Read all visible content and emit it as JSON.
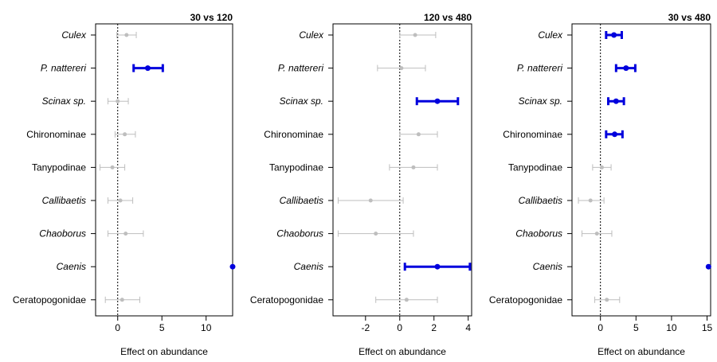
{
  "chart_data": [
    {
      "type": "forest",
      "title": "30 vs 120",
      "xlabel": "Effect on abundance",
      "xlim": [
        -2.5,
        13
      ],
      "xticks": [
        0,
        5,
        10
      ],
      "categories": [
        "Culex",
        "P. nattereri",
        "Scinax sp.",
        "Chironominae",
        "Tanypodinae",
        "Callibaetis",
        "Chaoborus",
        "Caenis",
        "Ceratopogonidae"
      ],
      "points": [
        {
          "est": 1.0,
          "lo": -0.1,
          "hi": 2.1,
          "sig": false
        },
        {
          "est": 3.4,
          "lo": 1.8,
          "hi": 5.1,
          "sig": true
        },
        {
          "est": 0.0,
          "lo": -1.1,
          "hi": 1.2,
          "sig": false
        },
        {
          "est": 0.8,
          "lo": -0.3,
          "hi": 2.0,
          "sig": false
        },
        {
          "est": -0.6,
          "lo": -2.0,
          "hi": 0.8,
          "sig": false
        },
        {
          "est": 0.3,
          "lo": -1.1,
          "hi": 1.7,
          "sig": false
        },
        {
          "est": 0.9,
          "lo": -1.1,
          "hi": 2.9,
          "sig": false
        },
        {
          "est": 13.0,
          "lo": 13.0,
          "hi": 13.0,
          "sig": true
        },
        {
          "est": 0.5,
          "lo": -1.4,
          "hi": 2.5,
          "sig": false
        }
      ]
    },
    {
      "type": "forest",
      "title": "120 vs 480",
      "xlabel": "Effect on abundance",
      "xlim": [
        -3.9,
        4.2
      ],
      "xticks": [
        -2,
        0,
        2,
        4
      ],
      "categories": [
        "Culex",
        "P. nattereri",
        "Scinax sp.",
        "Chironominae",
        "Tanypodinae",
        "Callibaetis",
        "Chaoborus",
        "Caenis",
        "Ceratopogonidae"
      ],
      "points": [
        {
          "est": 0.9,
          "lo": 0.0,
          "hi": 2.1,
          "sig": false
        },
        {
          "est": 0.1,
          "lo": -1.3,
          "hi": 1.5,
          "sig": false
        },
        {
          "est": 2.2,
          "lo": 1.0,
          "hi": 3.4,
          "sig": true
        },
        {
          "est": 1.1,
          "lo": 0.0,
          "hi": 2.2,
          "sig": false
        },
        {
          "est": 0.8,
          "lo": -0.6,
          "hi": 2.2,
          "sig": false
        },
        {
          "est": -1.7,
          "lo": -3.6,
          "hi": 0.2,
          "sig": false
        },
        {
          "est": -1.4,
          "lo": -3.6,
          "hi": 0.8,
          "sig": false
        },
        {
          "est": 2.2,
          "lo": 0.3,
          "hi": 4.1,
          "sig": true
        },
        {
          "est": 0.4,
          "lo": -1.4,
          "hi": 2.2,
          "sig": false
        }
      ]
    },
    {
      "type": "forest",
      "title": "30 vs 480",
      "xlabel": "Effect on abundance",
      "xlim": [
        -4,
        15.5
      ],
      "xticks": [
        0,
        5,
        10,
        15
      ],
      "categories": [
        "Culex",
        "P. nattereri",
        "Scinax sp.",
        "Chironominae",
        "Tanypodinae",
        "Callibaetis",
        "Chaoborus",
        "Caenis",
        "Ceratopogonidae"
      ],
      "points": [
        {
          "est": 1.9,
          "lo": 0.8,
          "hi": 3.0,
          "sig": true
        },
        {
          "est": 3.6,
          "lo": 2.2,
          "hi": 4.9,
          "sig": true
        },
        {
          "est": 2.2,
          "lo": 1.1,
          "hi": 3.3,
          "sig": true
        },
        {
          "est": 2.0,
          "lo": 0.8,
          "hi": 3.1,
          "sig": true
        },
        {
          "est": 0.2,
          "lo": -1.1,
          "hi": 1.5,
          "sig": false
        },
        {
          "est": -1.4,
          "lo": -3.1,
          "hi": 0.5,
          "sig": false
        },
        {
          "est": -0.5,
          "lo": -2.6,
          "hi": 1.6,
          "sig": false
        },
        {
          "est": 15.2,
          "lo": 15.2,
          "hi": 15.2,
          "sig": true
        },
        {
          "est": 0.9,
          "lo": -0.8,
          "hi": 2.7,
          "sig": false
        }
      ]
    }
  ],
  "styles": {
    "significant_color": "#0000dd",
    "nonsignificant_color": "#bebebe",
    "italic_categories": [
      "Culex",
      "P. nattereri",
      "Scinax sp.",
      "Callibaetis",
      "Chaoborus",
      "Caenis"
    ]
  }
}
